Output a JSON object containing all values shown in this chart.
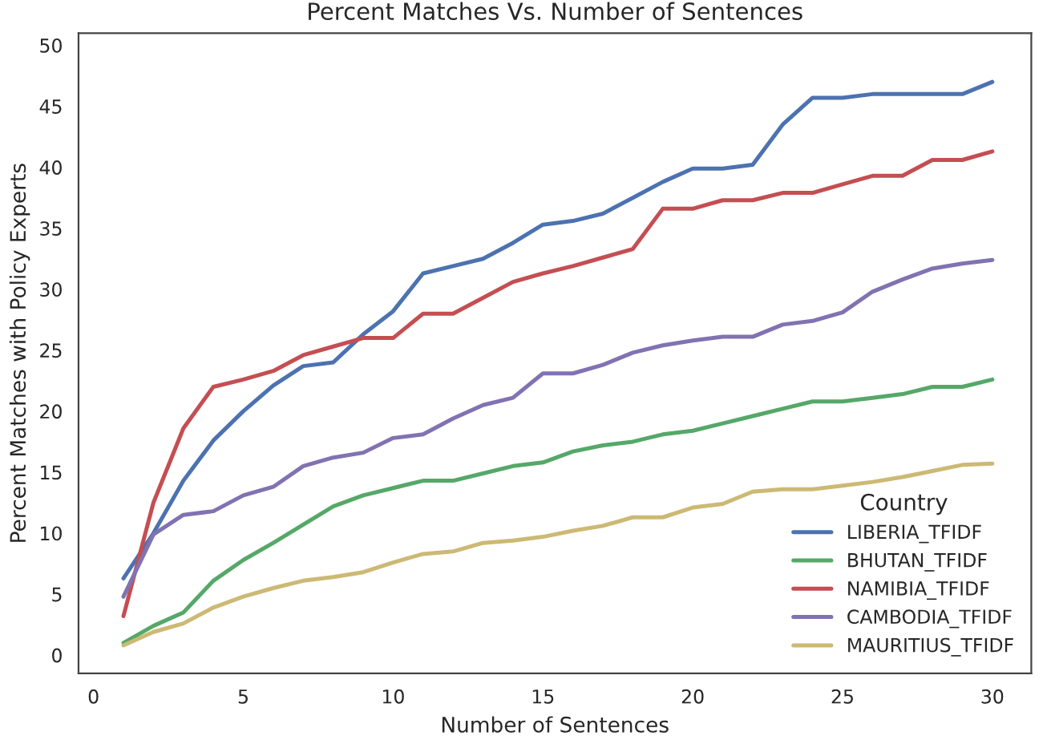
{
  "chart_data": {
    "type": "line",
    "title": "Percent Matches Vs. Number of Sentences",
    "xlabel": "Number of Sentences",
    "ylabel": "Percent Matches with Policy Experts",
    "legend_title": "Country",
    "legend": "bottom right",
    "grid": false,
    "x": [
      1,
      2,
      3,
      4,
      5,
      6,
      7,
      8,
      9,
      10,
      11,
      12,
      13,
      14,
      15,
      16,
      17,
      18,
      19,
      20,
      21,
      22,
      23,
      24,
      25,
      26,
      27,
      28,
      29,
      30
    ],
    "xlim": [
      -0.5,
      31.3
    ],
    "xticks": [
      0,
      5,
      10,
      15,
      20,
      25,
      30
    ],
    "ylim": [
      -1.5,
      51
    ],
    "yticks": [
      0,
      5,
      10,
      15,
      20,
      25,
      30,
      35,
      40,
      45,
      50
    ],
    "series": [
      {
        "name": "LIBERIA_TFIDF",
        "color": "#4c72b0",
        "values": [
          6.3,
          10,
          14.3,
          17.6,
          20,
          22.1,
          23.7,
          24,
          26.3,
          28.2,
          31.3,
          31.9,
          32.5,
          33.8,
          35.3,
          35.6,
          36.2,
          37.5,
          38.8,
          39.9,
          39.9,
          40.2,
          43.5,
          45.7,
          45.7,
          46,
          46,
          46,
          46,
          47
        ]
      },
      {
        "name": "BHUTAN_TFIDF",
        "color": "#55a868",
        "values": [
          1,
          2.4,
          3.5,
          6.1,
          7.8,
          9.2,
          10.7,
          12.2,
          13.1,
          13.7,
          14.3,
          14.3,
          14.9,
          15.5,
          15.8,
          16.7,
          17.2,
          17.5,
          18.1,
          18.4,
          19,
          19.6,
          20.2,
          20.8,
          20.8,
          21.1,
          21.4,
          22,
          22,
          22.6
        ]
      },
      {
        "name": "NAMIBIA_TFIDF",
        "color": "#c44e52",
        "values": [
          3.2,
          12.5,
          18.6,
          22,
          22.6,
          23.3,
          24.6,
          25.3,
          26,
          26,
          28,
          28,
          29.3,
          30.6,
          31.3,
          31.9,
          32.6,
          33.3,
          36.6,
          36.6,
          37.3,
          37.3,
          37.9,
          37.9,
          38.6,
          39.3,
          39.3,
          40.6,
          40.6,
          41.3
        ]
      },
      {
        "name": "CAMBODIA_TFIDF",
        "color": "#8172b2",
        "values": [
          4.8,
          9.9,
          11.5,
          11.8,
          13.1,
          13.8,
          15.5,
          16.2,
          16.6,
          17.8,
          18.1,
          19.4,
          20.5,
          21.1,
          23.1,
          23.1,
          23.8,
          24.8,
          25.4,
          25.8,
          26.1,
          26.1,
          27.1,
          27.4,
          28.1,
          29.8,
          30.8,
          31.7,
          32.1,
          32.4
        ]
      },
      {
        "name": "MAURITIUS_TFIDF",
        "color": "#ccb974",
        "values": [
          0.8,
          1.9,
          2.6,
          3.9,
          4.8,
          5.5,
          6.1,
          6.4,
          6.8,
          7.6,
          8.3,
          8.5,
          9.2,
          9.4,
          9.7,
          10.2,
          10.6,
          11.3,
          11.3,
          12.1,
          12.4,
          13.4,
          13.6,
          13.6,
          13.9,
          14.2,
          14.6,
          15.1,
          15.6,
          15.7
        ]
      }
    ]
  }
}
